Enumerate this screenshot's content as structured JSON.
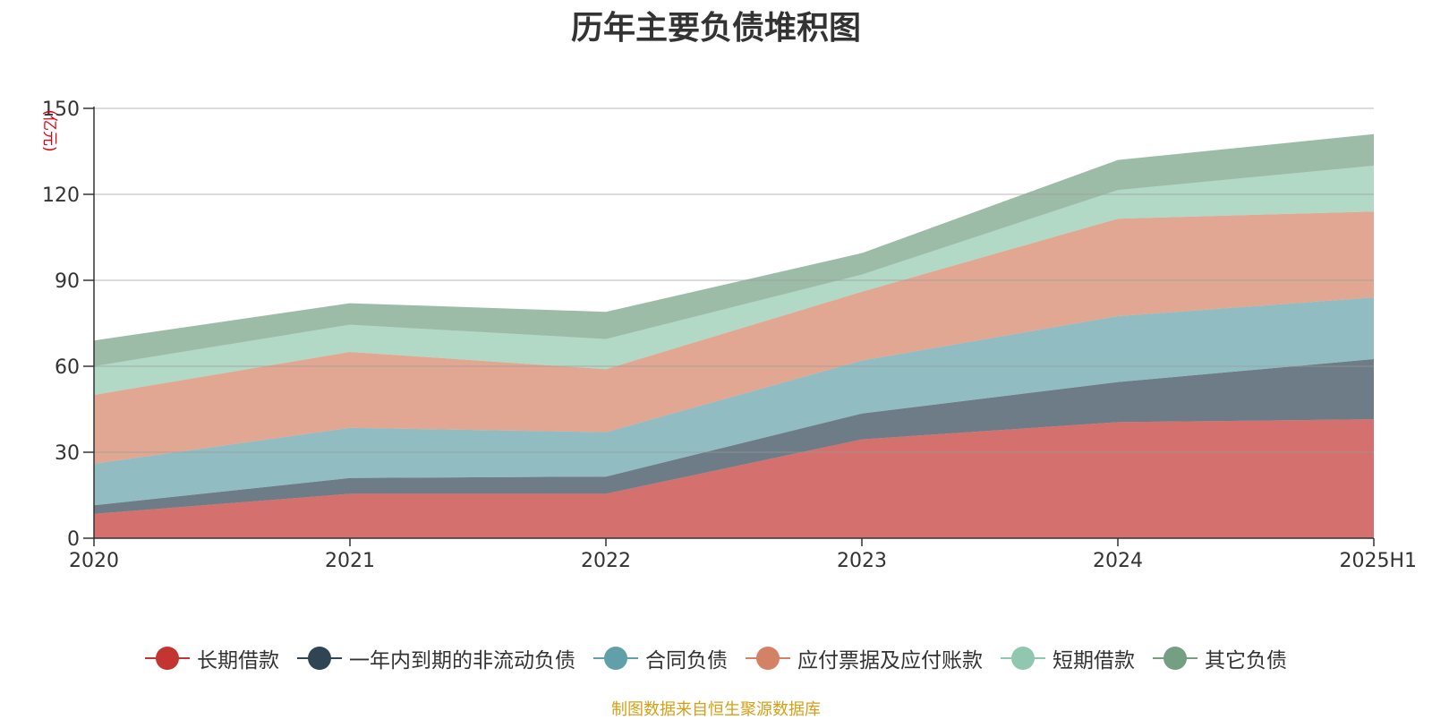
{
  "chart_data": {
    "type": "area",
    "stacked": true,
    "title": "历年主要负债堆积图",
    "unit_label": "(亿元)",
    "categories": [
      "2020",
      "2021",
      "2022",
      "2023",
      "2024",
      "2025H1"
    ],
    "ylim": [
      0,
      150
    ],
    "yticks": [
      0,
      30,
      60,
      90,
      120,
      150
    ],
    "grid": true,
    "legend_position": "bottom",
    "series": [
      {
        "name": "长期借款",
        "color": "#c23531",
        "values": [
          8.5,
          15.5,
          15.5,
          34.5,
          40.5,
          41.5
        ]
      },
      {
        "name": "一年内到期的非流动负债",
        "color": "#2f4554",
        "values": [
          3,
          5.5,
          6,
          9,
          14,
          21
        ]
      },
      {
        "name": "合同负债",
        "color": "#61a0a8",
        "values": [
          14.5,
          17.5,
          15.5,
          18.5,
          23,
          21.5
        ]
      },
      {
        "name": "应付票据及应付账款",
        "color": "#d48265",
        "values": [
          24,
          26.5,
          22,
          24,
          34,
          30
        ]
      },
      {
        "name": "短期借款",
        "color": "#91c7ae",
        "values": [
          10,
          9.5,
          10.5,
          6,
          10,
          16
        ]
      },
      {
        "name": "其它负债",
        "color": "#749f83",
        "values": [
          9,
          7.5,
          9.5,
          7.5,
          10.5,
          11
        ]
      }
    ]
  },
  "footer_note": "制图数据来自恒生聚源数据库"
}
